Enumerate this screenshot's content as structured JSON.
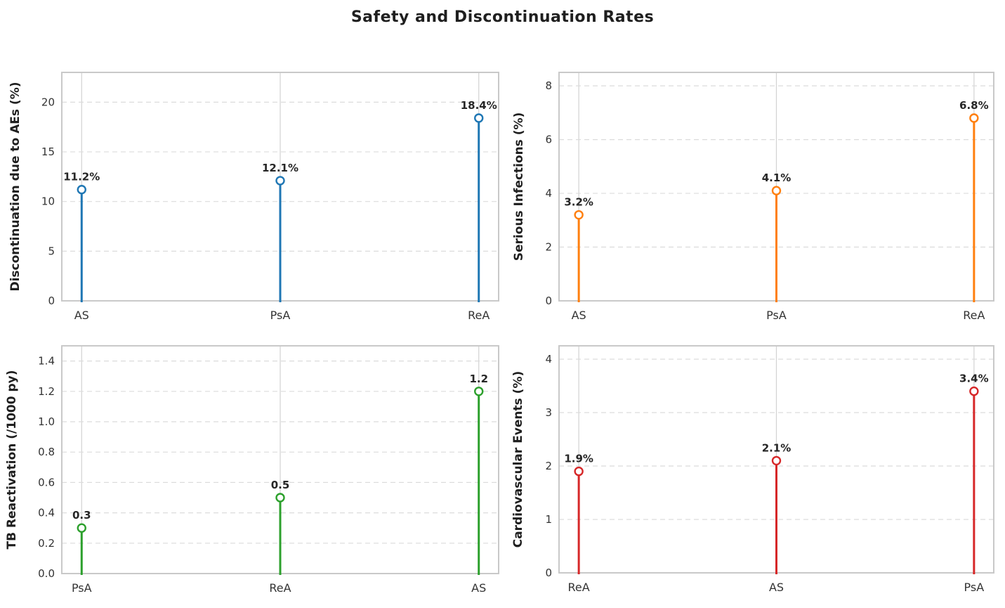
{
  "title": "Safety and Discontinuation Rates",
  "chart_data": [
    {
      "type": "stem",
      "panel": "top-left",
      "ylabel": "Discontinuation due to AEs (%)",
      "categories": [
        "AS",
        "PsA",
        "ReA"
      ],
      "values": [
        11.2,
        12.1,
        18.4
      ],
      "point_labels": [
        "11.2%",
        "12.1%",
        "18.4%"
      ],
      "yticks": [
        0,
        5,
        10,
        15,
        20
      ],
      "ytick_labels": [
        "0",
        "5",
        "10",
        "15",
        "20"
      ],
      "ylim": [
        0,
        23
      ],
      "color": "#1f77b4",
      "grid": "horizontal-dashed-and-vertical-solid",
      "legend": "none"
    },
    {
      "type": "stem",
      "panel": "top-right",
      "ylabel": "Serious Infections (%)",
      "categories": [
        "AS",
        "PsA",
        "ReA"
      ],
      "values": [
        3.2,
        4.1,
        6.8
      ],
      "point_labels": [
        "3.2%",
        "4.1%",
        "6.8%"
      ],
      "yticks": [
        0,
        2,
        4,
        6,
        8
      ],
      "ytick_labels": [
        "0",
        "2",
        "4",
        "6",
        "8"
      ],
      "ylim": [
        0,
        8.5
      ],
      "color": "#ff7f0e",
      "grid": "horizontal-dashed-and-vertical-solid",
      "legend": "none"
    },
    {
      "type": "stem",
      "panel": "bottom-left",
      "ylabel": "TB Reactivation (/1000 py)",
      "categories": [
        "PsA",
        "ReA",
        "AS"
      ],
      "values": [
        0.3,
        0.5,
        1.2
      ],
      "point_labels": [
        "0.3",
        "0.5",
        "1.2"
      ],
      "yticks": [
        0.0,
        0.2,
        0.4,
        0.6,
        0.8,
        1.0,
        1.2,
        1.4
      ],
      "ytick_labels": [
        "0.0",
        "0.2",
        "0.4",
        "0.6",
        "0.8",
        "1.0",
        "1.2",
        "1.4"
      ],
      "ylim": [
        0,
        1.5
      ],
      "color": "#2ca02c",
      "grid": "horizontal-dashed-and-vertical-solid",
      "legend": "none"
    },
    {
      "type": "stem",
      "panel": "bottom-right",
      "ylabel": "Cardiovascular Events (%)",
      "categories": [
        "ReA",
        "AS",
        "PsA"
      ],
      "values": [
        1.9,
        2.1,
        3.4
      ],
      "point_labels": [
        "1.9%",
        "2.1%",
        "3.4%"
      ],
      "yticks": [
        0,
        1,
        2,
        3,
        4
      ],
      "ytick_labels": [
        "0",
        "1",
        "2",
        "3",
        "4"
      ],
      "ylim": [
        0,
        4.25
      ],
      "color": "#d62728",
      "grid": "horizontal-dashed-and-vertical-solid",
      "legend": "none"
    }
  ],
  "style_colors": {
    "spine": "#c9c9c9",
    "grid_dashed": "#dcdcdc",
    "grid_vertical": "#d3d3d3",
    "tick_label": "#333333",
    "point_label": "#262626",
    "axis_label": "#1f1f1f",
    "marker_fill": "#ffffff"
  }
}
